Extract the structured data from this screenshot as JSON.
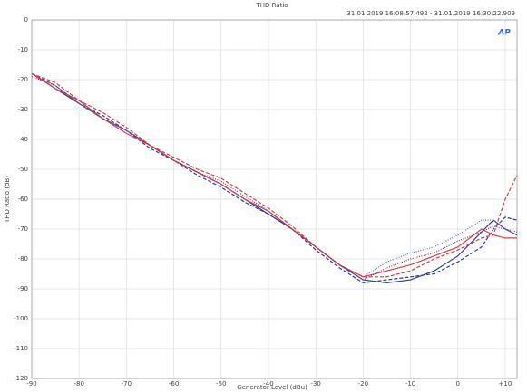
{
  "chart_data": {
    "type": "line",
    "title": "THD Ratio",
    "subtitle": "31.01.2019 16:08:57.492 - 31.01.2019 16:30:22.909",
    "logo": "AP",
    "x_label": "Generator Level (dBu)",
    "y_label": "THD Ratio (dB)",
    "x": [
      -90,
      -85,
      -80,
      -75,
      -70,
      -65,
      -60,
      -55,
      -50,
      -45,
      -40,
      -35,
      -30,
      -25,
      -20,
      -15,
      -10,
      -5,
      0,
      5,
      7.5,
      10,
      12.5
    ],
    "series": [
      {
        "color": "#2a3f9a",
        "dash": "solid",
        "values": [
          -18,
          -23,
          -28,
          -33,
          -37,
          -42,
          -47,
          -51,
          -55,
          -60,
          -65,
          -70,
          -76,
          -82,
          -87,
          -88,
          -87,
          -84,
          -79,
          -71,
          -67,
          -70,
          -72
        ]
      },
      {
        "color": "#2a3f9a",
        "dash": "dashed",
        "values": [
          -18,
          -22,
          -28,
          -32,
          -37,
          -43,
          -47,
          -52,
          -56,
          -61,
          -65,
          -70,
          -77,
          -83,
          -88,
          -87,
          -86,
          -85,
          -81,
          -76,
          -70,
          -66,
          -67
        ]
      },
      {
        "color": "#5a6fc0",
        "dash": "dotted",
        "values": [
          -18,
          -22,
          -28,
          -33,
          -37,
          -42,
          -47,
          -51,
          -55,
          -60,
          -64,
          -70,
          -76,
          -82,
          -86,
          -81,
          -78,
          -76,
          -72,
          -67,
          -67,
          -70,
          -72
        ]
      },
      {
        "color": "#d0404a",
        "dash": "solid",
        "values": [
          -18,
          -23,
          -27,
          -33,
          -38,
          -42,
          -47,
          -51,
          -55,
          -60,
          -64,
          -70,
          -76,
          -82,
          -86,
          -84,
          -82,
          -79,
          -76,
          -70,
          -72,
          -73,
          -73
        ]
      },
      {
        "color": "#d0404a",
        "dash": "dashed",
        "values": [
          -18,
          -21,
          -27,
          -31,
          -36,
          -42,
          -46,
          -50,
          -53,
          -58,
          -63,
          -69,
          -76,
          -82,
          -86,
          -86,
          -84,
          -80,
          -77,
          -73,
          -72,
          -60,
          -52
        ]
      },
      {
        "color": "#a03040",
        "dash": "dotted",
        "values": [
          -19,
          -22,
          -28,
          -33,
          -37,
          -42,
          -47,
          -51,
          -54,
          -59,
          -64,
          -70,
          -76,
          -82,
          -87,
          -83,
          -80,
          -78,
          -74,
          -71,
          -69,
          -70,
          -71
        ]
      }
    ],
    "xlim": [
      -90,
      12.5
    ],
    "ylim": [
      -120,
      0
    ],
    "xticks": [
      -90,
      -80,
      -70,
      -60,
      -50,
      -40,
      -30,
      -20,
      -10,
      0,
      {
        "value": 10,
        "label": "+10"
      }
    ],
    "yticks": [
      0,
      -10,
      -20,
      -30,
      -40,
      -50,
      -60,
      -70,
      -80,
      -90,
      -100,
      -110,
      -120
    ],
    "grid": true
  }
}
